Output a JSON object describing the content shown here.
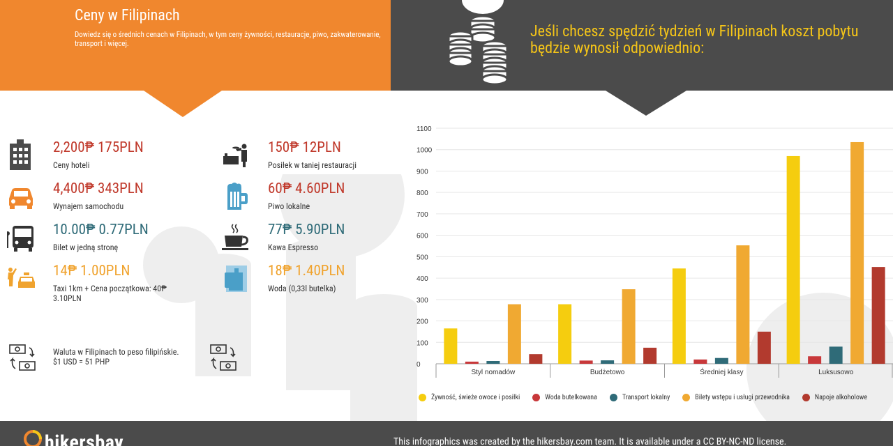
{
  "header": {
    "title": "Ceny w Filipinach",
    "description": "Dowiedz się o średnich cenach w Filipinach, w tym ceny żywności, restauracje, piwo, zakwaterowanie, transport i więcej.",
    "headline": "Jeśli chcesz spędzić tydzień w Filipinach koszt pobytu będzie wynosił odpowiednio:"
  },
  "prices": [
    {
      "icon": "hotel-icon",
      "price": "2,200₱ 175PLN",
      "label": "Ceny hoteli",
      "color": "#c0392b"
    },
    {
      "icon": "car-icon",
      "price": "4,400₱ 343PLN",
      "label": "Wynajem samochodu",
      "color": "#c0392b"
    },
    {
      "icon": "bus-icon",
      "price": "10.00₱ 0.77PLN",
      "label": "Bilet w jedną stronę",
      "color": "#2f6b78"
    },
    {
      "icon": "taxi-icon",
      "price": "14₱ 1.00PLN",
      "label": "Taxi 1km + Cena początkowa: 40₱",
      "label2": "3.10PLN",
      "color": "#f0a32e"
    },
    {
      "icon": "restaurant-icon",
      "price": "150₱ 12PLN",
      "label": "Posiłek w taniej restauracji",
      "color": "#c0392b"
    },
    {
      "icon": "beer-icon",
      "price": "60₱ 4.60PLN",
      "label": "Piwo lokalne",
      "color": "#c0392b"
    },
    {
      "icon": "coffee-icon",
      "price": "77₱ 5.90PLN",
      "label": "Kawa Espresso",
      "color": "#2f6b78"
    },
    {
      "icon": "water-icon",
      "price": "18₱ 1.40PLN",
      "label": "Woda (0,33l butelka)",
      "color": "#f0a32e"
    }
  ],
  "currency_note": {
    "line1": "Waluta w Filipinach to peso filipińskie.",
    "line2": "$1 USD = 51 PHP"
  },
  "chart_data": {
    "type": "bar",
    "categories": [
      "Styl nomadów",
      "Budżetowo",
      "Średniej klasy",
      "Luksusowo"
    ],
    "ylim": [
      0,
      1100
    ],
    "yticks": [
      0,
      100,
      200,
      300,
      400,
      500,
      600,
      700,
      800,
      900,
      1000,
      1100
    ],
    "series": [
      {
        "name": "Żywność, świeże owoce i posiłki",
        "color": "#f5cd0f",
        "values": [
          165,
          278,
          445,
          970
        ]
      },
      {
        "name": "Woda butelkowana",
        "color": "#c8383a",
        "values": [
          10,
          15,
          20,
          35
        ]
      },
      {
        "name": "Transport lokalny",
        "color": "#2f6b78",
        "values": [
          13,
          16,
          27,
          80
        ]
      },
      {
        "name": "Bilety wstępu i usługi przewodnika",
        "color": "#f0a932",
        "values": [
          278,
          348,
          553,
          1035
        ]
      },
      {
        "name": "Napoje alkoholowe",
        "color": "#b23a2e",
        "values": [
          45,
          75,
          150,
          452
        ]
      }
    ]
  },
  "footer": {
    "logo": "hikersbay",
    "text": "This infographics was created by the hikersbay.com team. It is available under a CC BY-NC-ND license."
  }
}
